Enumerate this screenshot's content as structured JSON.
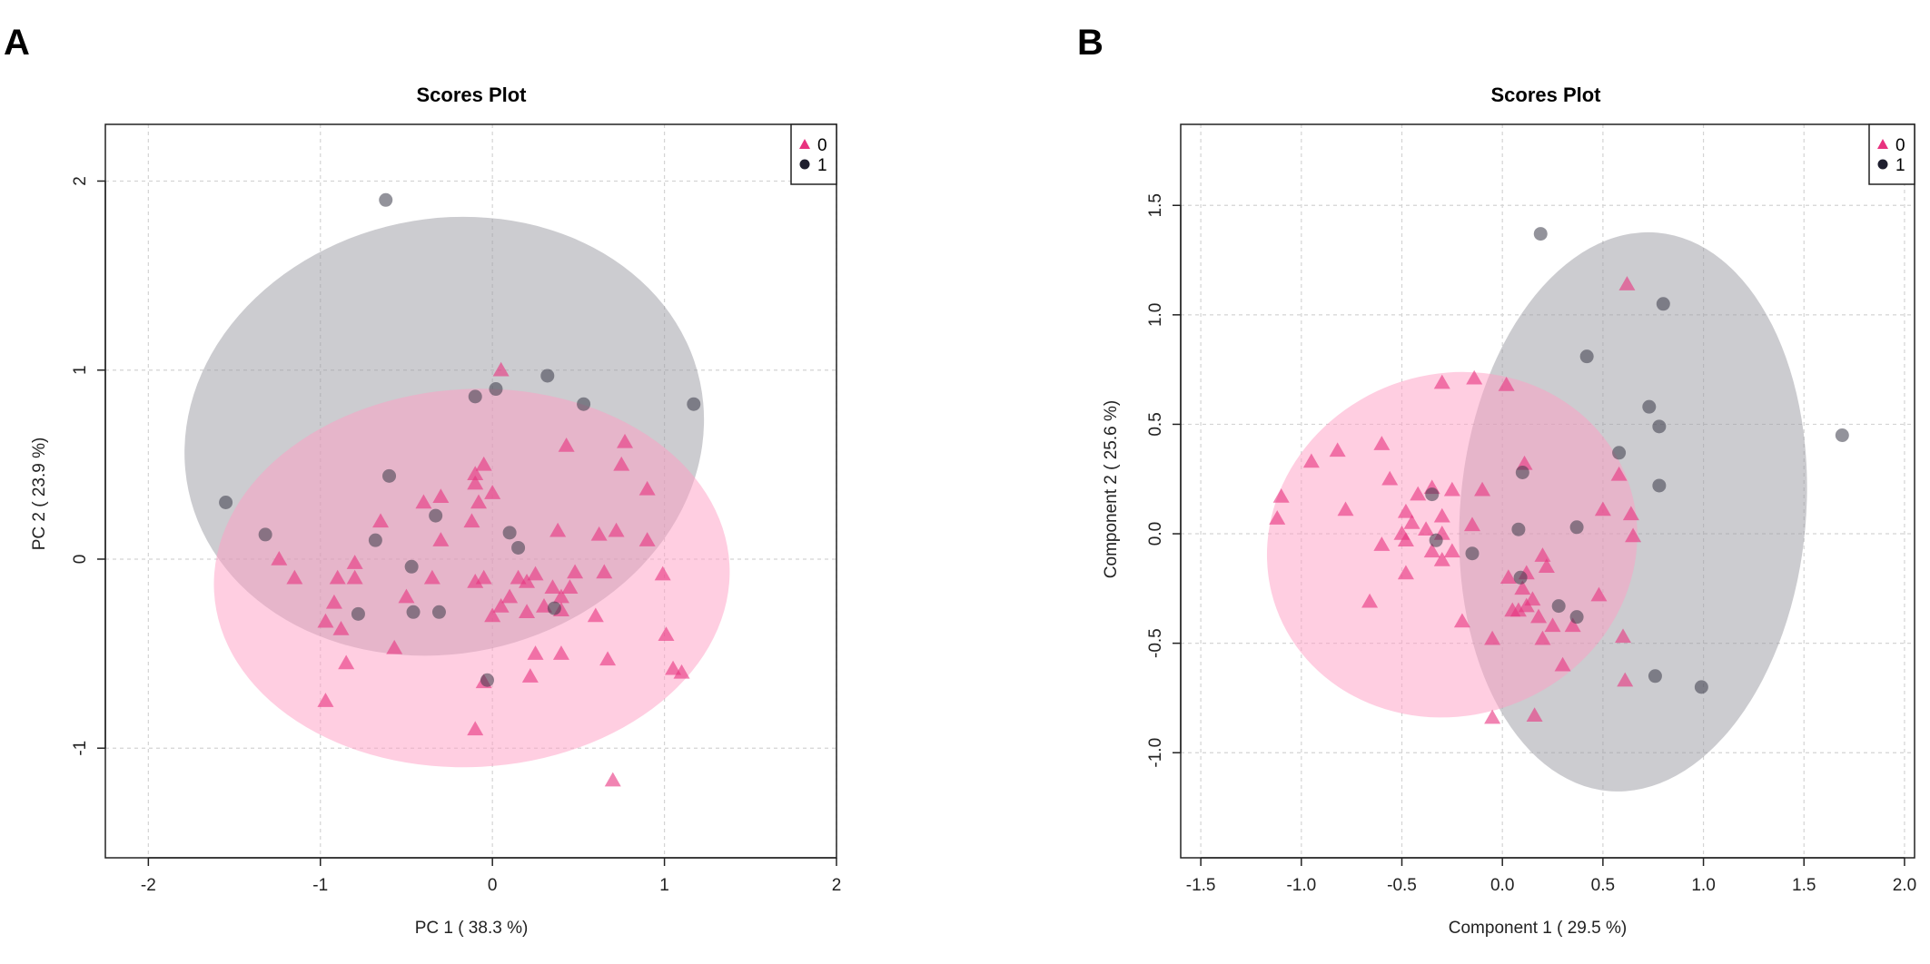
{
  "chart_data": [
    {
      "panel_label": "A",
      "type": "scatter",
      "title": "Scores Plot",
      "xlabel": "PC 1 ( 38.3 %)",
      "ylabel": "PC 2 ( 23.9 %)",
      "xlim": [
        -2.25,
        2.0
      ],
      "ylim": [
        -1.58,
        2.3
      ],
      "xticks": [
        -2,
        -1,
        0,
        1,
        2
      ],
      "xtick_labels": [
        "-2",
        "-1",
        "0",
        "1",
        "2"
      ],
      "yticks": [
        -1,
        0,
        1,
        2
      ],
      "ytick_labels": [
        "-1",
        "0",
        "1",
        "2"
      ],
      "grid": true,
      "legend_position": "top-right",
      "series": [
        {
          "name": "0",
          "marker": "triangle",
          "color": "#e8327f",
          "ellipse": {
            "cx": -0.12,
            "cy": -0.1,
            "rx": 1.5,
            "ry": 1.0,
            "angle": -3,
            "color": "#ff9ec4"
          },
          "points": [
            [
              0.05,
              1.0
            ],
            [
              -0.1,
              0.4
            ],
            [
              -0.05,
              0.5
            ],
            [
              -0.08,
              0.3
            ],
            [
              -0.12,
              0.2
            ],
            [
              -0.4,
              0.3
            ],
            [
              -0.3,
              0.33
            ],
            [
              -0.65,
              0.2
            ],
            [
              -0.3,
              0.1
            ],
            [
              -0.1,
              0.45
            ],
            [
              0.0,
              0.35
            ],
            [
              0.43,
              0.6
            ],
            [
              0.77,
              0.62
            ],
            [
              0.75,
              0.5
            ],
            [
              0.9,
              0.37
            ],
            [
              0.38,
              0.15
            ],
            [
              0.62,
              0.13
            ],
            [
              0.72,
              0.15
            ],
            [
              0.9,
              0.1
            ],
            [
              0.65,
              -0.07
            ],
            [
              0.99,
              -0.08
            ],
            [
              -1.24,
              0.0
            ],
            [
              -1.15,
              -0.1
            ],
            [
              -0.97,
              -0.33
            ],
            [
              -0.9,
              -0.1
            ],
            [
              -0.92,
              -0.23
            ],
            [
              -0.88,
              -0.37
            ],
            [
              -0.8,
              -0.02
            ],
            [
              -0.8,
              -0.1
            ],
            [
              -0.85,
              -0.55
            ],
            [
              -0.57,
              -0.47
            ],
            [
              -0.5,
              -0.2
            ],
            [
              -0.35,
              -0.1
            ],
            [
              -0.1,
              -0.12
            ],
            [
              -0.05,
              -0.1
            ],
            [
              0.05,
              -0.25
            ],
            [
              0.1,
              -0.2
            ],
            [
              0.15,
              -0.1
            ],
            [
              0.2,
              -0.12
            ],
            [
              0.25,
              -0.08
            ],
            [
              0.2,
              -0.28
            ],
            [
              0.3,
              -0.25
            ],
            [
              0.35,
              -0.15
            ],
            [
              0.4,
              -0.2
            ],
            [
              0.4,
              -0.27
            ],
            [
              0.45,
              -0.15
            ],
            [
              0.48,
              -0.07
            ],
            [
              0.6,
              -0.3
            ],
            [
              0.4,
              -0.5
            ],
            [
              0.25,
              -0.5
            ],
            [
              0.22,
              -0.62
            ],
            [
              0.67,
              -0.53
            ],
            [
              1.01,
              -0.4
            ],
            [
              1.05,
              -0.58
            ],
            [
              1.1,
              -0.6
            ],
            [
              -0.05,
              -0.65
            ],
            [
              -0.1,
              -0.9
            ],
            [
              -0.97,
              -0.75
            ],
            [
              0.7,
              -1.17
            ],
            [
              0.0,
              -0.3
            ]
          ]
        },
        {
          "name": "1",
          "marker": "circle",
          "color": "#3a3a48",
          "ellipse": {
            "cx": -0.28,
            "cy": 0.65,
            "rx": 1.52,
            "ry": 1.15,
            "angle": -12,
            "color": "#9a9aa2"
          },
          "points": [
            [
              -0.62,
              1.9
            ],
            [
              0.32,
              0.97
            ],
            [
              0.53,
              0.82
            ],
            [
              1.17,
              0.82
            ],
            [
              0.02,
              0.9
            ],
            [
              -0.1,
              0.86
            ],
            [
              -0.6,
              0.44
            ],
            [
              -0.33,
              0.23
            ],
            [
              -1.55,
              0.3
            ],
            [
              -1.32,
              0.13
            ],
            [
              -0.68,
              0.1
            ],
            [
              0.1,
              0.14
            ],
            [
              0.15,
              0.06
            ],
            [
              -0.47,
              -0.04
            ],
            [
              -0.78,
              -0.29
            ],
            [
              -0.46,
              -0.28
            ],
            [
              -0.31,
              -0.28
            ],
            [
              0.36,
              -0.26
            ],
            [
              -0.03,
              -0.64
            ]
          ]
        }
      ]
    },
    {
      "panel_label": "B",
      "type": "scatter",
      "title": "Scores Plot",
      "xlabel": "Component 1 ( 29.5 %)",
      "ylabel": "Component 2 ( 25.6 %)",
      "xlim": [
        -1.6,
        2.05
      ],
      "ylim": [
        -1.48,
        1.87
      ],
      "xticks": [
        -1.5,
        -1.0,
        -0.5,
        0.0,
        0.5,
        1.0,
        1.5,
        2.0
      ],
      "xtick_labels": [
        "-1.5",
        "-1.0",
        "-0.5",
        "0.0",
        "0.5",
        "1.0",
        "1.5",
        "2.0"
      ],
      "yticks": [
        -1.0,
        -0.5,
        0.0,
        0.5,
        1.0,
        1.5
      ],
      "ytick_labels": [
        "-1.0",
        "-0.5",
        "0.0",
        "0.5",
        "1.0",
        "1.5"
      ],
      "grid": true,
      "legend_position": "top-right",
      "series": [
        {
          "name": "0",
          "marker": "triangle",
          "color": "#e8327f",
          "ellipse": {
            "cx": -0.25,
            "cy": -0.05,
            "rx": 0.93,
            "ry": 0.78,
            "angle": -20,
            "color": "#ff9ec4"
          },
          "points": [
            [
              0.62,
              1.14
            ],
            [
              -0.3,
              0.69
            ],
            [
              -0.14,
              0.71
            ],
            [
              0.02,
              0.68
            ],
            [
              0.11,
              0.32
            ],
            [
              -0.95,
              0.33
            ],
            [
              -0.82,
              0.38
            ],
            [
              -1.1,
              0.17
            ],
            [
              -1.12,
              0.07
            ],
            [
              -0.6,
              0.41
            ],
            [
              -0.78,
              0.11
            ],
            [
              -0.56,
              0.25
            ],
            [
              -0.42,
              0.18
            ],
            [
              -0.35,
              0.21
            ],
            [
              -0.25,
              0.2
            ],
            [
              -0.1,
              0.2
            ],
            [
              -0.48,
              0.1
            ],
            [
              -0.45,
              0.05
            ],
            [
              -0.5,
              0.0
            ],
            [
              -0.48,
              -0.03
            ],
            [
              -0.38,
              0.02
            ],
            [
              -0.3,
              0.08
            ],
            [
              -0.35,
              -0.08
            ],
            [
              -0.3,
              -0.12
            ],
            [
              -0.25,
              -0.08
            ],
            [
              -0.15,
              0.04
            ],
            [
              -0.6,
              -0.05
            ],
            [
              -0.48,
              -0.18
            ],
            [
              -0.66,
              -0.31
            ],
            [
              -0.2,
              -0.4
            ],
            [
              -0.05,
              -0.48
            ],
            [
              0.03,
              -0.2
            ],
            [
              0.08,
              -0.35
            ],
            [
              0.1,
              -0.25
            ],
            [
              0.12,
              -0.18
            ],
            [
              0.15,
              -0.3
            ],
            [
              0.18,
              -0.38
            ],
            [
              0.2,
              -0.1
            ],
            [
              0.22,
              -0.15
            ],
            [
              0.2,
              -0.48
            ],
            [
              0.25,
              -0.42
            ],
            [
              0.3,
              -0.6
            ],
            [
              0.35,
              -0.42
            ],
            [
              0.48,
              -0.28
            ],
            [
              0.5,
              0.11
            ],
            [
              0.58,
              0.27
            ],
            [
              0.64,
              0.09
            ],
            [
              0.65,
              -0.01
            ],
            [
              0.6,
              -0.47
            ],
            [
              0.61,
              -0.67
            ],
            [
              0.16,
              -0.83
            ],
            [
              -0.05,
              -0.84
            ],
            [
              0.12,
              -0.33
            ],
            [
              0.05,
              -0.35
            ],
            [
              -0.3,
              0.0
            ]
          ]
        },
        {
          "name": "1",
          "marker": "circle",
          "color": "#3a3a48",
          "ellipse": {
            "cx": 0.65,
            "cy": 0.1,
            "rx": 0.86,
            "ry": 1.28,
            "angle": 5,
            "color": "#9a9aa2"
          },
          "points": [
            [
              0.19,
              1.37
            ],
            [
              0.8,
              1.05
            ],
            [
              0.42,
              0.81
            ],
            [
              0.73,
              0.58
            ],
            [
              0.78,
              0.49
            ],
            [
              0.58,
              0.37
            ],
            [
              0.78,
              0.22
            ],
            [
              1.69,
              0.45
            ],
            [
              -0.35,
              0.18
            ],
            [
              0.1,
              0.28
            ],
            [
              -0.33,
              -0.03
            ],
            [
              -0.15,
              -0.09
            ],
            [
              0.08,
              0.02
            ],
            [
              0.37,
              0.03
            ],
            [
              0.09,
              -0.2
            ],
            [
              0.28,
              -0.33
            ],
            [
              0.37,
              -0.38
            ],
            [
              0.76,
              -0.65
            ],
            [
              0.99,
              -0.7
            ]
          ]
        }
      ]
    }
  ]
}
